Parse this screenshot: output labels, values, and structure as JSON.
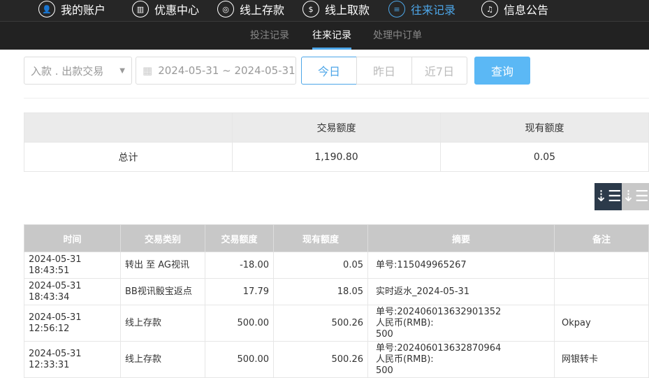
{
  "nav": [
    {
      "label": "我的账户",
      "icon": "user-icon"
    },
    {
      "label": "优惠中心",
      "icon": "gift-icon"
    },
    {
      "label": "线上存款",
      "icon": "deposit-icon"
    },
    {
      "label": "线上取款",
      "icon": "withdraw-icon"
    },
    {
      "label": "往来记录",
      "icon": "record-icon",
      "active": true
    },
    {
      "label": "信息公告",
      "icon": "bell-icon"
    }
  ],
  "subnav": [
    "投注记录",
    "往来记录",
    "处理中订单"
  ],
  "filter": {
    "type_select": "入款 . 出款交易",
    "date_range": "2024-05-31 ~ 2024-05-31",
    "today": "今日",
    "yesterday": "昨日",
    "last7": "近7日",
    "query": "查询"
  },
  "summary": {
    "headers": [
      "",
      "交易额度",
      "现有额度"
    ],
    "label": "总计",
    "amount": "1,190.80",
    "balance": "0.05"
  },
  "table": {
    "headers": [
      "时间",
      "交易类别",
      "交易额度",
      "现有额度",
      "摘要",
      "备注"
    ],
    "rows": [
      {
        "time": "2024-05-31 18:43:51",
        "type": "转出 至 AG视讯",
        "amount": "-18.00",
        "balance": "0.05",
        "summary": [
          "单号:115049965267"
        ],
        "note": ""
      },
      {
        "time": "2024-05-31 18:43:34",
        "type": "BB视讯骰宝返点",
        "amount": "17.79",
        "balance": "18.05",
        "summary": [
          "实时返水_2024-05-31"
        ],
        "note": ""
      },
      {
        "time": "2024-05-31 12:56:12",
        "type": "线上存款",
        "amount": "500.00",
        "balance": "500.26",
        "summary": [
          "单号:202406013632901352",
          "人民币(RMB):",
          "500"
        ],
        "note": "Okpay"
      },
      {
        "time": "2024-05-31 12:33:31",
        "type": "线上存款",
        "amount": "500.00",
        "balance": "500.26",
        "summary": [
          "单号:202406013632870964",
          "人民币(RMB):",
          "500"
        ],
        "note": "网银转卡"
      }
    ]
  },
  "colors": {
    "accent": "#4da6e8",
    "query_button": "#5bb8f5",
    "nav_bg": "#262626",
    "sort_active": "#2c3a4a"
  }
}
